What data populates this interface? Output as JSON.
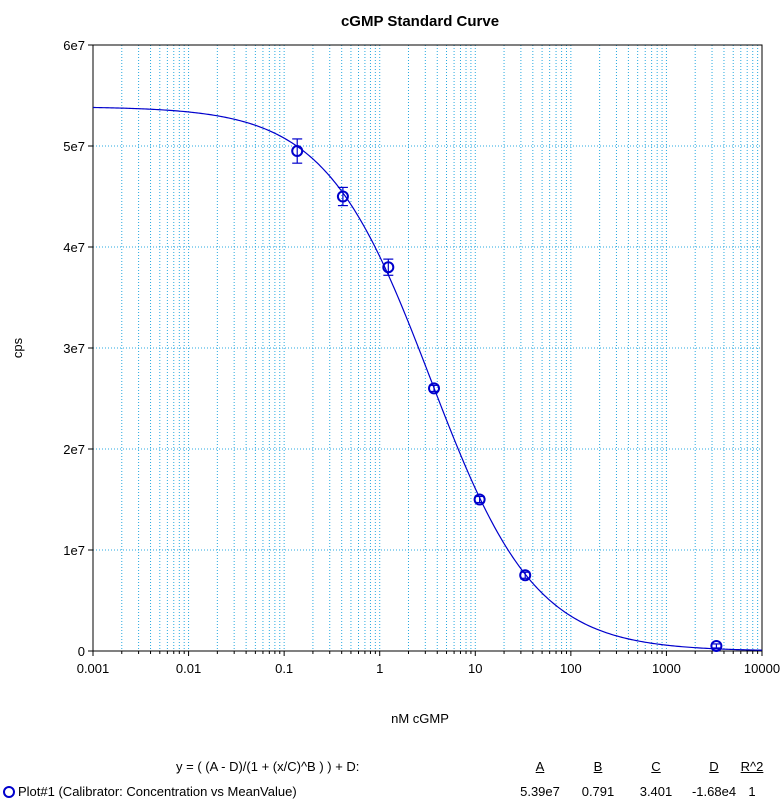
{
  "chart_data": {
    "type": "scatter",
    "title": "cGMP Standard Curve",
    "xlabel": "nM cGMP",
    "ylabel": "cps",
    "xscale": "log",
    "xlim": [
      0.001,
      10000
    ],
    "ylim": [
      0,
      60000000
    ],
    "x_tick_labels": [
      "0.001",
      "0.01",
      "0.1",
      "1",
      "10",
      "100",
      "1000",
      "10000"
    ],
    "y_tick_labels": [
      "0",
      "1e7",
      "2e7",
      "3e7",
      "4e7",
      "5e7",
      "6e7"
    ],
    "grid": true,
    "series": [
      {
        "name": "Plot#1 (Calibrator: Concentration vs MeanValue)",
        "x": [
          0.137,
          0.412,
          1.23,
          3.7,
          11.1,
          33.3,
          3333
        ],
        "y": [
          49500000,
          45000000,
          38000000,
          26000000,
          15000000,
          7500000,
          500000
        ],
        "error": [
          1200000,
          900000,
          800000,
          300000,
          300000,
          300000,
          200000
        ]
      }
    ],
    "fit": {
      "equation": "y = ( (A - D)/(1 + (x/C)^B ) ) + D:",
      "A": 53900000,
      "B": 0.791,
      "C": 3.401,
      "D": -16800
    }
  },
  "fit_table": {
    "equation_label": "y = ( (A - D)/(1 + (x/C)^B ) ) + D:",
    "headers": [
      "A",
      "B",
      "C",
      "D",
      "R^2"
    ],
    "row_label": "Plot#1 (Calibrator: Concentration vs MeanValue)",
    "values": [
      "5.39e7",
      "0.791",
      "3.401",
      "-1.68e4",
      "1"
    ]
  },
  "colors": {
    "series": "#0000cc",
    "grid": "#29a9e0",
    "axis": "#000000"
  }
}
